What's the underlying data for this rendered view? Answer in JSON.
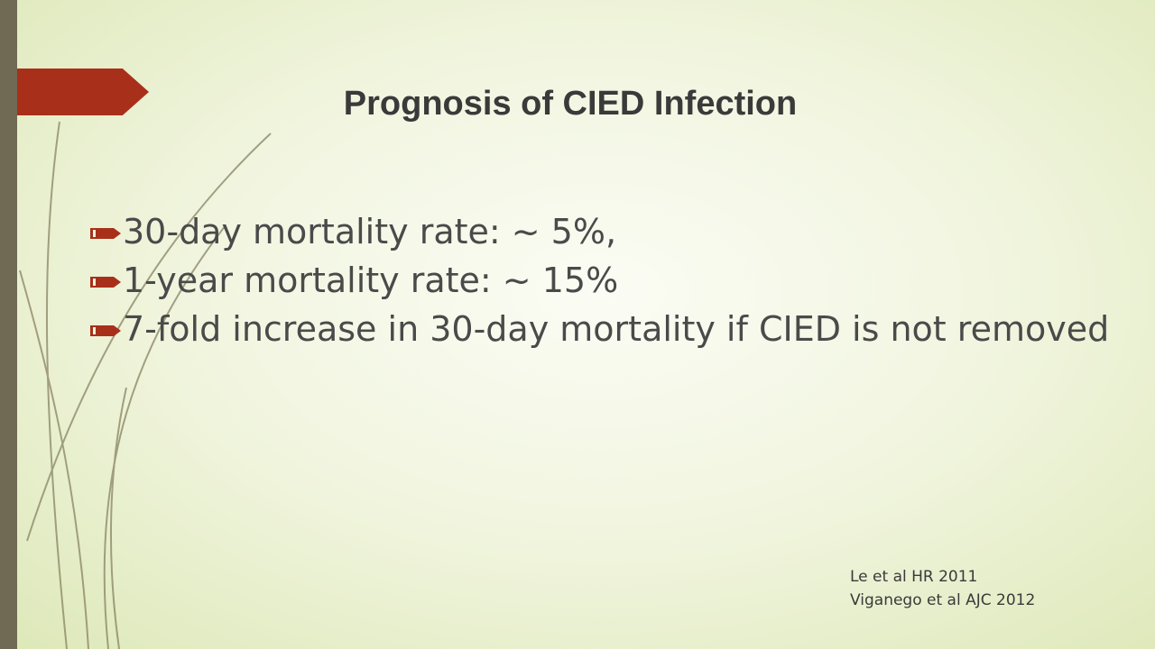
{
  "slide": {
    "title": "Prognosis of CIED Infection",
    "bullets": [
      " 30-day mortality rate:  ~ 5%,",
      " 1-year mortality rate: ~ 15%",
      " 7-fold increase in 30-day mortality if CIED is not removed"
    ],
    "citations": [
      "Le et al HR 2011",
      "Viganego et al AJC 2012"
    ]
  },
  "theme": {
    "accent": "#a8301a",
    "sidebar": "#706a55",
    "background": "#f1f5df",
    "text": "#4a4a4a"
  }
}
